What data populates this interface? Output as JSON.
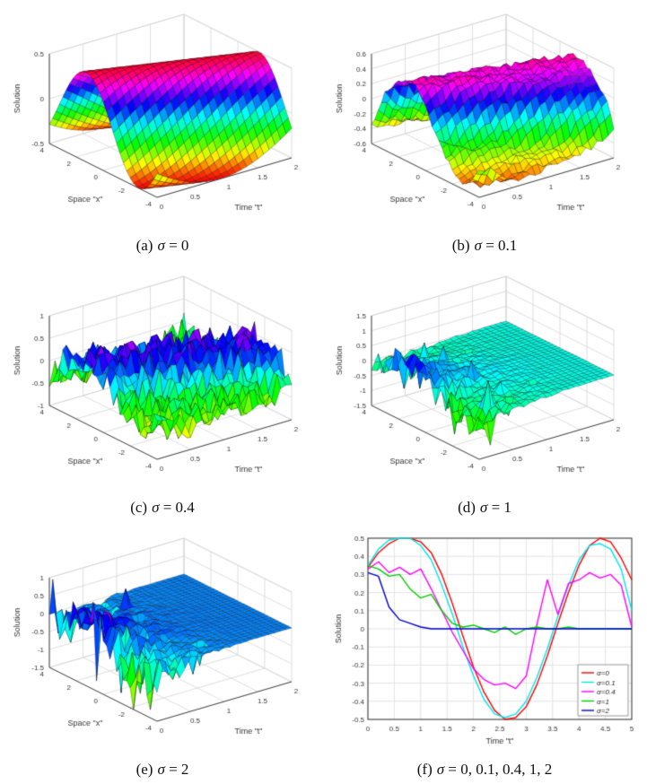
{
  "figure": {
    "background": "#ffffff",
    "colormap": "hsv",
    "layout": "2x3 grid of subplots"
  },
  "chart_data": [
    {
      "id": "a",
      "type": "surface",
      "caption_label": "(a)",
      "caption_symbol": "σ",
      "caption_value": " = 0",
      "sigma": 0,
      "xlabel": "Space \"x\"",
      "ylabel": "Time \"t\"",
      "zlabel": "Solution",
      "space_range": [
        -4,
        4
      ],
      "time_range": [
        0,
        2
      ],
      "z_range": [
        -0.5,
        0.5
      ],
      "space_ticks": [
        -4,
        -2,
        0,
        2,
        4
      ],
      "time_ticks": [
        0,
        0.5,
        1,
        1.5,
        2
      ],
      "z_ticks": [
        -0.5,
        0,
        0.5
      ],
      "description": "smooth travelling sine wave surface, hsv colormap",
      "surface": {
        "seed": 1,
        "nx": 32,
        "nt": 24,
        "amplitude": 0.5,
        "kx": 0.8,
        "omega": 1.15,
        "phase": 0.55,
        "ripple": 0,
        "noise": 0,
        "noise_decay": 0,
        "decay": 0,
        "spike_prob": 0,
        "spike_amp": 0,
        "spike_tmax": 0,
        "spike_neg": 0.5
      }
    },
    {
      "id": "b",
      "type": "surface",
      "caption_label": "(b)",
      "caption_symbol": "σ",
      "caption_value": " = 0.1",
      "sigma": 0.1,
      "xlabel": "Space \"x\"",
      "ylabel": "Time \"t\"",
      "zlabel": "Solution",
      "space_range": [
        -4,
        4
      ],
      "time_range": [
        0,
        2
      ],
      "z_range": [
        -0.6,
        0.6
      ],
      "space_ticks": [
        -4,
        -2,
        0,
        2,
        4
      ],
      "time_ticks": [
        0,
        0.5,
        1,
        1.5,
        2
      ],
      "z_ticks": [
        -0.6,
        -0.4,
        -0.2,
        0,
        0.2,
        0.4,
        0.6
      ],
      "description": "sine wave surface with mild stochastic ripples",
      "surface": {
        "seed": 7,
        "nx": 32,
        "nt": 24,
        "amplitude": 0.5,
        "kx": 0.8,
        "omega": 1.15,
        "phase": 0.55,
        "ripple": 0.05,
        "noise": 0.05,
        "noise_decay": 0,
        "decay": 0,
        "spike_prob": 0,
        "spike_amp": 0,
        "spike_tmax": 0,
        "spike_neg": 0.5
      }
    },
    {
      "id": "c",
      "type": "surface",
      "caption_label": "(c)",
      "caption_symbol": "σ",
      "caption_value": " = 0.4",
      "sigma": 0.4,
      "xlabel": "Space \"x\"",
      "ylabel": "Time \"t\"",
      "zlabel": "Solution",
      "space_range": [
        -4,
        4
      ],
      "time_range": [
        0,
        2
      ],
      "z_range": [
        -1,
        1
      ],
      "space_ticks": [
        -4,
        -2,
        0,
        2,
        4
      ],
      "time_ticks": [
        0,
        0.5,
        1,
        1.5,
        2
      ],
      "z_ticks": [
        -1,
        -0.5,
        0,
        0.5,
        1
      ],
      "description": "strongly jagged noisy wave surface",
      "surface": {
        "seed": 11,
        "nx": 32,
        "nt": 24,
        "amplitude": 0.45,
        "kx": 0.8,
        "omega": 1.15,
        "phase": 0.55,
        "ripple": 0.07,
        "noise": 0.32,
        "noise_decay": 0,
        "decay": 0,
        "spike_prob": 0,
        "spike_amp": 0,
        "spike_tmax": 0,
        "spike_neg": 0.5
      }
    },
    {
      "id": "d",
      "type": "surface",
      "caption_label": "(d)",
      "caption_symbol": "σ",
      "caption_value": " = 1",
      "sigma": 1,
      "xlabel": "Space \"x\"",
      "ylabel": "Time \"t\"",
      "zlabel": "Solution",
      "space_range": [
        -4,
        4
      ],
      "time_range": [
        0,
        2
      ],
      "z_range": [
        -1.5,
        1.5
      ],
      "space_ticks": [
        -4,
        -2,
        0,
        2,
        4
      ],
      "time_ticks": [
        0,
        0.5,
        1,
        1.5,
        2
      ],
      "z_ticks": [
        -1.5,
        -1,
        -0.5,
        0,
        0.5,
        1,
        1.5
      ],
      "description": "solution decays rapidly to flat zero plane with early-time spikes",
      "surface": {
        "seed": 13,
        "nx": 32,
        "nt": 24,
        "amplitude": 0.5,
        "kx": 0.8,
        "omega": 1.15,
        "phase": 0.55,
        "ripple": 0,
        "noise": 0.45,
        "noise_decay": 2.2,
        "decay": 2.2,
        "spike_prob": 0.035,
        "spike_amp": 1.3,
        "spike_tmax": 1.1,
        "spike_neg": 0.55
      }
    },
    {
      "id": "e",
      "type": "surface",
      "caption_label": "(e)",
      "caption_symbol": "σ",
      "caption_value": " = 2",
      "sigma": 2,
      "xlabel": "Space \"x\"",
      "ylabel": "Time \"t\"",
      "zlabel": "Solution",
      "space_range": [
        -4,
        4
      ],
      "time_range": [
        0,
        2
      ],
      "z_range": [
        -1.5,
        1
      ],
      "space_ticks": [
        -4,
        -2,
        0,
        2,
        4
      ],
      "time_ticks": [
        0,
        0.5,
        1,
        1.5,
        2
      ],
      "z_ticks": [
        -1.5,
        -1,
        -0.5,
        0,
        0.5,
        1
      ],
      "description": "very fast decay to flat plane, large mostly-downward spikes near t=0",
      "surface": {
        "seed": 23,
        "nx": 32,
        "nt": 24,
        "amplitude": 0.45,
        "kx": 0.8,
        "omega": 1.15,
        "phase": 0.55,
        "ripple": 0,
        "noise": 0.6,
        "noise_decay": 2.8,
        "decay": 3.2,
        "spike_prob": 0.045,
        "spike_amp": 1.5,
        "spike_tmax": 0.9,
        "spike_neg": 0.78
      }
    },
    {
      "id": "f",
      "type": "line",
      "caption_label": "(f)",
      "caption_symbol": "σ",
      "caption_value": " = 0, 0.1, 0.4, 1, 2",
      "xlabel": "Time \"t\"",
      "ylabel": "Solution",
      "xlim": [
        0,
        5
      ],
      "ylim": [
        -0.5,
        0.5
      ],
      "x_ticks": [
        0,
        0.5,
        1,
        1.5,
        2,
        2.5,
        3,
        3.5,
        4,
        4.5,
        5
      ],
      "y_ticks": [
        -0.5,
        -0.4,
        -0.3,
        -0.2,
        -0.1,
        0,
        0.1,
        0.2,
        0.3,
        0.4,
        0.5
      ],
      "grid": true,
      "legend_position": "bottom-right",
      "x": [
        0,
        0.2,
        0.4,
        0.6,
        0.8,
        1,
        1.2,
        1.4,
        1.6,
        1.8,
        2,
        2.2,
        2.4,
        2.6,
        2.8,
        3,
        3.2,
        3.4,
        3.6,
        3.8,
        4,
        4.2,
        4.4,
        4.6,
        4.8,
        5
      ],
      "series": [
        {
          "label": "σ=0",
          "color": "#ff0000",
          "y": [
            0.34,
            0.42,
            0.47,
            0.5,
            0.5,
            0.48,
            0.42,
            0.3,
            0.14,
            -0.04,
            -0.21,
            -0.35,
            -0.45,
            -0.5,
            -0.49,
            -0.43,
            -0.31,
            -0.15,
            0.03,
            0.2,
            0.35,
            0.46,
            0.5,
            0.48,
            0.39,
            0.27
          ]
        },
        {
          "label": "σ=0.1",
          "color": "#00e5ee",
          "y": [
            0.35,
            0.44,
            0.49,
            0.5,
            0.5,
            0.46,
            0.38,
            0.24,
            0.08,
            -0.1,
            -0.26,
            -0.39,
            -0.47,
            -0.49,
            -0.47,
            -0.4,
            -0.27,
            -0.11,
            0.07,
            0.24,
            0.38,
            0.46,
            0.47,
            0.44,
            0.33,
            0.1
          ]
        },
        {
          "label": "σ=0.4",
          "color": "#ff00ff",
          "y": [
            0.33,
            0.37,
            0.31,
            0.34,
            0.3,
            0.33,
            0.22,
            0.1,
            -0.02,
            -0.12,
            -0.22,
            -0.28,
            -0.31,
            -0.3,
            -0.33,
            -0.26,
            0.02,
            0.27,
            0.08,
            0.25,
            0.27,
            0.31,
            0.28,
            0.3,
            0.24,
            0.01
          ]
        },
        {
          "label": "σ=1",
          "color": "#00cc00",
          "y": [
            0.35,
            0.33,
            0.29,
            0.3,
            0.22,
            0.17,
            0.19,
            0.1,
            0.03,
            0.01,
            0.02,
            0,
            -0.02,
            0.01,
            -0.03,
            0,
            0.01,
            0,
            0,
            0.01,
            0,
            0,
            0,
            0,
            0,
            0
          ]
        },
        {
          "label": "σ=2",
          "color": "#0000cc",
          "y": [
            0.31,
            0.29,
            0.12,
            0.05,
            0.03,
            0.01,
            0,
            0,
            0,
            0,
            0,
            0,
            0,
            0,
            0,
            0,
            0,
            0,
            0,
            0,
            0,
            0,
            0,
            0,
            0,
            0
          ]
        }
      ]
    }
  ]
}
